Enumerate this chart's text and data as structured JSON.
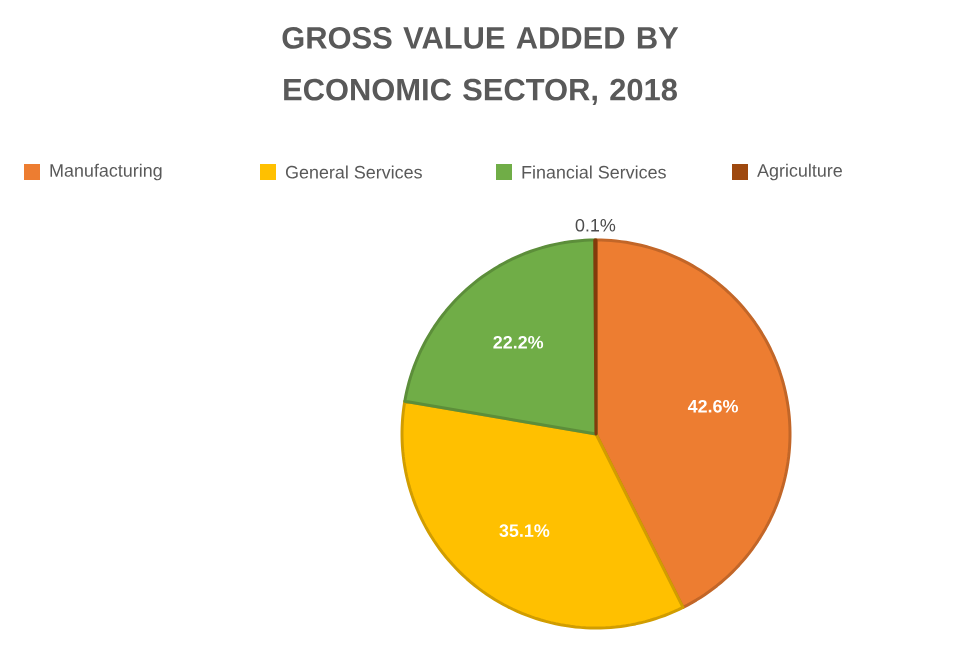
{
  "chart_data": {
    "type": "pie",
    "title": "GROSS VALUE ADDED BY ECONOMIC SECTOR, 2018",
    "categories": [
      "Manufacturing",
      "General Services",
      "Financial Services",
      "Agriculture"
    ],
    "values": [
      42.6,
      35.1,
      22.2,
      0.1
    ],
    "colors": [
      "#ed7d31",
      "#ffc000",
      "#70ad47",
      "#9e480e"
    ],
    "value_labels": [
      "42.6%",
      "35.1%",
      "22.2%",
      "0.1%"
    ],
    "legend": "top"
  }
}
